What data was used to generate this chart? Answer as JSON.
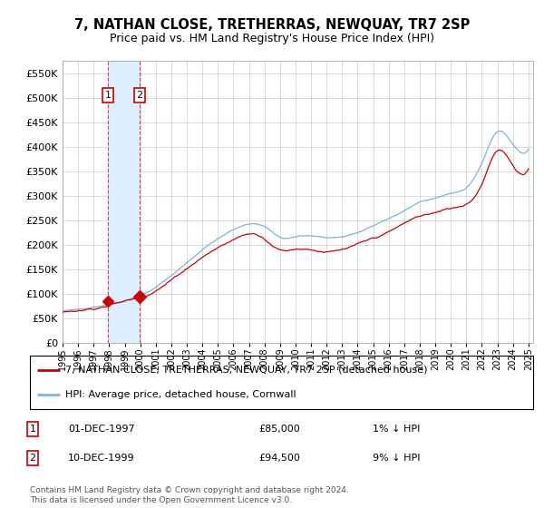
{
  "title": "7, NATHAN CLOSE, TRETHERRAS, NEWQUAY, TR7 2SP",
  "subtitle": "Price paid vs. HM Land Registry's House Price Index (HPI)",
  "legend_line1": "7, NATHAN CLOSE, TRETHERRAS, NEWQUAY, TR7 2SP (detached house)",
  "legend_line2": "HPI: Average price, detached house, Cornwall",
  "annotation1_date": "01-DEC-1997",
  "annotation1_price": "£85,000",
  "annotation1_hpi": "1% ↓ HPI",
  "annotation2_date": "10-DEC-1999",
  "annotation2_price": "£94,500",
  "annotation2_hpi": "9% ↓ HPI",
  "footer": "Contains HM Land Registry data © Crown copyright and database right 2024.\nThis data is licensed under the Open Government Licence v3.0.",
  "hpi_color": "#7ab4d8",
  "price_color": "#cc0000",
  "vline_color": "#dd4444",
  "marker_color": "#cc0000",
  "annotation_box_color": "#cc0000",
  "highlight_fill": "#ddeeff",
  "ylim": [
    0,
    575000
  ],
  "yticks": [
    0,
    50000,
    100000,
    150000,
    200000,
    250000,
    300000,
    350000,
    400000,
    450000,
    500000,
    550000
  ],
  "purchase1_year": 1997.917,
  "purchase2_year": 1999.958,
  "purchase1_price": 85000,
  "purchase2_price": 94500,
  "xmin": 1995.0,
  "xmax": 2025.3
}
